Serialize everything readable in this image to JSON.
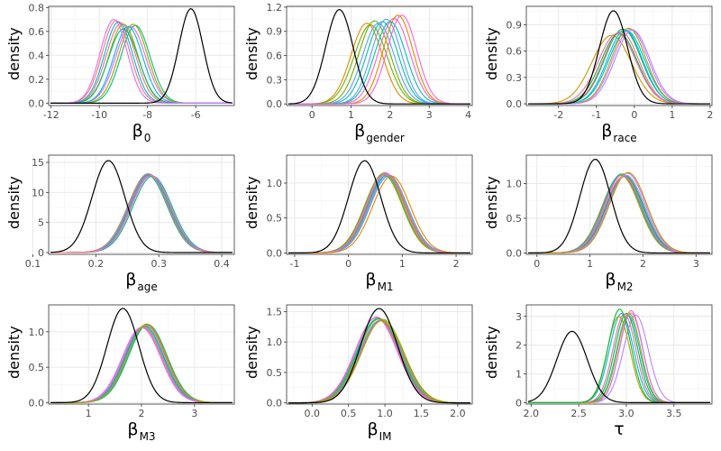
{
  "series_colors": [
    "#F8766D",
    "#E58700",
    "#C99800",
    "#A3A500",
    "#6BB100",
    "#00BA38",
    "#00BF7D",
    "#00C0AF",
    "#00BCD8",
    "#00B0F6",
    "#619CFF",
    "#B983FF",
    "#E76BF3",
    "#FD61D1",
    "#FF67A4"
  ],
  "reference_color": "#000000",
  "chart_data": [
    {
      "type": "line",
      "ylabel": "density",
      "xlabel": {
        "main": "β",
        "sub": "0"
      },
      "xlim": [
        -12.1,
        -4.4
      ],
      "ylim": [
        -0.02,
        0.81
      ],
      "xticks": [
        -12,
        -10,
        -8,
        -6
      ],
      "xtick_labels": [
        "-12",
        "-10",
        "-8",
        "-6"
      ],
      "yticks": [
        0.0,
        0.2,
        0.4,
        0.6,
        0.8
      ],
      "ytick_labels": [
        "0.0",
        "0.2",
        "0.4",
        "0.6",
        "0.8"
      ],
      "grid": true,
      "reference": {
        "mean": -6.2,
        "sd": 0.5,
        "peak": 0.79
      },
      "series": [
        {
          "mean": -9.3,
          "sd": 0.58,
          "peak": 0.69
        },
        {
          "mean": -9.0,
          "sd": 0.6,
          "peak": 0.66
        },
        {
          "mean": -8.5,
          "sd": 0.6,
          "peak": 0.65
        },
        {
          "mean": -9.2,
          "sd": 0.58,
          "peak": 0.68
        },
        {
          "mean": -8.7,
          "sd": 0.62,
          "peak": 0.64
        },
        {
          "mean": -9.1,
          "sd": 0.6,
          "peak": 0.67
        },
        {
          "mean": -8.6,
          "sd": 0.6,
          "peak": 0.66
        },
        {
          "mean": -9.0,
          "sd": 0.62,
          "peak": 0.62
        },
        {
          "mean": -8.8,
          "sd": 0.6,
          "peak": 0.64
        },
        {
          "mean": -9.4,
          "sd": 0.56,
          "peak": 0.7
        }
      ]
    },
    {
      "type": "line",
      "ylabel": "density",
      "xlabel": {
        "main": "β",
        "sub": "gender"
      },
      "xlim": [
        -0.65,
        4.1
      ],
      "ylim": [
        -0.02,
        1.21
      ],
      "xticks": [
        0,
        1,
        2,
        3,
        4
      ],
      "xtick_labels": [
        "0",
        "1",
        "2",
        "3",
        "4"
      ],
      "yticks": [
        0.0,
        0.3,
        0.6,
        0.9,
        1.2
      ],
      "ytick_labels": [
        "0.0",
        "0.3",
        "0.6",
        "0.9",
        "1.2"
      ],
      "grid": true,
      "reference": {
        "mean": 0.7,
        "sd": 0.35,
        "peak": 1.17
      },
      "series": [
        {
          "mean": 1.4,
          "sd": 0.4,
          "peak": 1.0
        },
        {
          "mean": 1.6,
          "sd": 0.4,
          "peak": 1.03
        },
        {
          "mean": 1.8,
          "sd": 0.4,
          "peak": 1.02
        },
        {
          "mean": 1.9,
          "sd": 0.38,
          "peak": 1.05
        },
        {
          "mean": 2.1,
          "sd": 0.4,
          "peak": 1.06
        },
        {
          "mean": 2.2,
          "sd": 0.38,
          "peak": 1.1
        },
        {
          "mean": 1.5,
          "sd": 0.42,
          "peak": 0.98
        },
        {
          "mean": 2.0,
          "sd": 0.4,
          "peak": 1.02
        },
        {
          "mean": 1.7,
          "sd": 0.4,
          "peak": 1.0
        },
        {
          "mean": 2.3,
          "sd": 0.38,
          "peak": 1.1
        }
      ]
    },
    {
      "type": "line",
      "ylabel": "density",
      "xlabel": {
        "main": "β",
        "sub": "race"
      },
      "xlim": [
        -2.85,
        2.05
      ],
      "ylim": [
        -0.02,
        1.11
      ],
      "xticks": [
        -2,
        -1,
        0,
        1,
        2
      ],
      "xtick_labels": [
        "-2",
        "-1",
        "0",
        "1",
        "2"
      ],
      "yticks": [
        0.0,
        0.3,
        0.6,
        0.9
      ],
      "ytick_labels": [
        "0.0",
        "0.3",
        "0.6",
        "0.9"
      ],
      "grid": true,
      "reference": {
        "mean": -0.55,
        "sd": 0.37,
        "peak": 1.06
      },
      "series": [
        {
          "mean": -0.6,
          "sd": 0.52,
          "peak": 0.78
        },
        {
          "mean": -0.3,
          "sd": 0.48,
          "peak": 0.85
        },
        {
          "mean": -0.2,
          "sd": 0.47,
          "peak": 0.83
        },
        {
          "mean": -0.1,
          "sd": 0.46,
          "peak": 0.85
        },
        {
          "mean": -0.35,
          "sd": 0.47,
          "peak": 0.82
        },
        {
          "mean": -0.15,
          "sd": 0.45,
          "peak": 0.86
        },
        {
          "mean": -0.4,
          "sd": 0.48,
          "peak": 0.8
        },
        {
          "mean": -0.25,
          "sd": 0.46,
          "peak": 0.84
        },
        {
          "mean": -0.05,
          "sd": 0.46,
          "peak": 0.84
        },
        {
          "mean": -0.45,
          "sd": 0.5,
          "peak": 0.8
        }
      ]
    },
    {
      "type": "line",
      "ylabel": "density",
      "xlabel": {
        "main": "β",
        "sub": "age"
      },
      "xlim": [
        0.125,
        0.42
      ],
      "ylim": [
        -0.3,
        16.2
      ],
      "xticks": [
        0.1,
        0.2,
        0.3,
        0.4
      ],
      "xtick_labels": [
        "0.1",
        "0.2",
        "0.3",
        "0.4"
      ],
      "yticks": [
        0,
        5,
        10,
        15
      ],
      "ytick_labels": [
        "0",
        "5",
        "10",
        "15"
      ],
      "grid": true,
      "reference": {
        "mean": 0.22,
        "sd": 0.026,
        "peak": 15.3
      },
      "series": [
        {
          "mean": 0.285,
          "sd": 0.031,
          "peak": 12.9
        },
        {
          "mean": 0.29,
          "sd": 0.031,
          "peak": 12.7
        },
        {
          "mean": 0.283,
          "sd": 0.031,
          "peak": 13.1
        },
        {
          "mean": 0.286,
          "sd": 0.031,
          "peak": 12.9
        },
        {
          "mean": 0.284,
          "sd": 0.031,
          "peak": 13.0
        },
        {
          "mean": 0.287,
          "sd": 0.031,
          "peak": 12.8
        },
        {
          "mean": 0.282,
          "sd": 0.031,
          "peak": 12.9
        },
        {
          "mean": 0.285,
          "sd": 0.031,
          "peak": 13.0
        },
        {
          "mean": 0.288,
          "sd": 0.031,
          "peak": 12.8
        },
        {
          "mean": 0.283,
          "sd": 0.031,
          "peak": 13.1
        }
      ]
    },
    {
      "type": "line",
      "ylabel": "density",
      "xlabel": {
        "main": "β",
        "sub": "M1"
      },
      "xlim": [
        -1.15,
        2.3
      ],
      "ylim": [
        -0.02,
        1.4
      ],
      "xticks": [
        -1,
        0,
        1,
        2
      ],
      "xtick_labels": [
        "-1",
        "0",
        "1",
        "2"
      ],
      "yticks": [
        0.0,
        0.5,
        1.0
      ],
      "ytick_labels": [
        "0.0",
        "0.5",
        "1.0"
      ],
      "grid": true,
      "reference": {
        "mean": 0.3,
        "sd": 0.3,
        "peak": 1.32
      },
      "series": [
        {
          "mean": 0.65,
          "sd": 0.35,
          "peak": 1.12
        },
        {
          "mean": 0.7,
          "sd": 0.35,
          "peak": 1.13
        },
        {
          "mean": 0.75,
          "sd": 0.35,
          "peak": 1.1
        },
        {
          "mean": 0.68,
          "sd": 0.35,
          "peak": 1.15
        },
        {
          "mean": 0.72,
          "sd": 0.35,
          "peak": 1.12
        },
        {
          "mean": 0.66,
          "sd": 0.35,
          "peak": 1.14
        },
        {
          "mean": 0.7,
          "sd": 0.35,
          "peak": 1.1
        },
        {
          "mean": 0.74,
          "sd": 0.35,
          "peak": 1.12
        },
        {
          "mean": 0.69,
          "sd": 0.35,
          "peak": 1.13
        },
        {
          "mean": 0.8,
          "sd": 0.35,
          "peak": 1.1
        }
      ]
    },
    {
      "type": "line",
      "ylabel": "density",
      "xlabel": {
        "main": "β",
        "sub": "M2"
      },
      "xlim": [
        -0.2,
        3.3
      ],
      "ylim": [
        -0.02,
        1.41
      ],
      "xticks": [
        0,
        1,
        2,
        3
      ],
      "xtick_labels": [
        "0",
        "1",
        "2",
        "3"
      ],
      "yticks": [
        0.0,
        0.5,
        1.0
      ],
      "ytick_labels": [
        "0.0",
        "0.5",
        "1.0"
      ],
      "grid": true,
      "reference": {
        "mean": 1.1,
        "sd": 0.29,
        "peak": 1.35
      },
      "series": [
        {
          "mean": 1.6,
          "sd": 0.35,
          "peak": 1.12
        },
        {
          "mean": 1.65,
          "sd": 0.35,
          "peak": 1.1
        },
        {
          "mean": 1.7,
          "sd": 0.35,
          "peak": 1.15
        },
        {
          "mean": 1.62,
          "sd": 0.35,
          "peak": 1.13
        },
        {
          "mean": 1.58,
          "sd": 0.35,
          "peak": 1.12
        },
        {
          "mean": 1.66,
          "sd": 0.35,
          "peak": 1.11
        },
        {
          "mean": 1.6,
          "sd": 0.35,
          "peak": 1.14
        },
        {
          "mean": 1.68,
          "sd": 0.35,
          "peak": 1.12
        },
        {
          "mean": 1.63,
          "sd": 0.35,
          "peak": 1.1
        },
        {
          "mean": 1.72,
          "sd": 0.35,
          "peak": 1.16
        }
      ]
    },
    {
      "type": "line",
      "ylabel": "density",
      "xlabel": {
        "main": "β",
        "sub": "M3"
      },
      "xlim": [
        0.25,
        3.75
      ],
      "ylim": [
        -0.02,
        1.38
      ],
      "xticks": [
        1,
        2,
        3
      ],
      "xtick_labels": [
        "1",
        "2",
        "3"
      ],
      "yticks": [
        0.0,
        0.5,
        1.0
      ],
      "ytick_labels": [
        "0.0",
        "0.5",
        "1.0"
      ],
      "grid": true,
      "reference": {
        "mean": 1.65,
        "sd": 0.3,
        "peak": 1.33
      },
      "series": [
        {
          "mean": 2.05,
          "sd": 0.36,
          "peak": 1.08
        },
        {
          "mean": 2.1,
          "sd": 0.36,
          "peak": 1.1
        },
        {
          "mean": 2.0,
          "sd": 0.36,
          "peak": 1.06
        },
        {
          "mean": 2.08,
          "sd": 0.36,
          "peak": 1.09
        },
        {
          "mean": 2.03,
          "sd": 0.36,
          "peak": 1.07
        },
        {
          "mean": 2.12,
          "sd": 0.36,
          "peak": 1.1
        },
        {
          "mean": 2.06,
          "sd": 0.36,
          "peak": 1.08
        },
        {
          "mean": 2.02,
          "sd": 0.36,
          "peak": 1.06
        },
        {
          "mean": 2.09,
          "sd": 0.36,
          "peak": 1.09
        },
        {
          "mean": 2.1,
          "sd": 0.36,
          "peak": 1.11
        }
      ]
    },
    {
      "type": "line",
      "ylabel": "density",
      "xlabel": {
        "main": "β",
        "sub": "IM"
      },
      "xlim": [
        -0.35,
        2.2
      ],
      "ylim": [
        -0.02,
        1.61
      ],
      "xticks": [
        0.0,
        0.5,
        1.0,
        1.5,
        2.0
      ],
      "xtick_labels": [
        "0.0",
        "0.5",
        "1.0",
        "1.5",
        "2.0"
      ],
      "yticks": [
        0.0,
        0.5,
        1.0,
        1.5
      ],
      "ytick_labels": [
        "0.0",
        "0.5",
        "1.0",
        "1.5"
      ],
      "grid": true,
      "reference": {
        "mean": 0.92,
        "sd": 0.255,
        "peak": 1.55
      },
      "series": [
        {
          "mean": 0.9,
          "sd": 0.29,
          "peak": 1.38
        },
        {
          "mean": 0.95,
          "sd": 0.29,
          "peak": 1.36
        },
        {
          "mean": 0.88,
          "sd": 0.29,
          "peak": 1.4
        },
        {
          "mean": 0.93,
          "sd": 0.29,
          "peak": 1.35
        },
        {
          "mean": 0.97,
          "sd": 0.29,
          "peak": 1.37
        },
        {
          "mean": 0.91,
          "sd": 0.29,
          "peak": 1.39
        },
        {
          "mean": 0.94,
          "sd": 0.29,
          "peak": 1.36
        },
        {
          "mean": 0.89,
          "sd": 0.29,
          "peak": 1.41
        },
        {
          "mean": 0.96,
          "sd": 0.29,
          "peak": 1.35
        },
        {
          "mean": 0.92,
          "sd": 0.29,
          "peak": 1.38
        }
      ]
    },
    {
      "type": "line",
      "ylabel": "density",
      "xlabel": {
        "main": "τ",
        "sub": ""
      },
      "xlim": [
        1.95,
        3.9
      ],
      "ylim": [
        -0.05,
        3.4
      ],
      "xticks": [
        2.0,
        2.5,
        3.0,
        3.5
      ],
      "xtick_labels": [
        "2.0",
        "2.5",
        "3.0",
        "3.5"
      ],
      "yticks": [
        0,
        1,
        2,
        3
      ],
      "ytick_labels": [
        "0",
        "1",
        "2",
        "3"
      ],
      "grid": true,
      "reference": {
        "mean": 2.43,
        "sd": 0.16,
        "peak": 2.48
      },
      "series": [
        {
          "mean": 2.95,
          "sd": 0.125,
          "peak": 3.1
        },
        {
          "mean": 3.1,
          "sd": 0.13,
          "peak": 3.05
        },
        {
          "mean": 3.05,
          "sd": 0.12,
          "peak": 3.2
        },
        {
          "mean": 2.92,
          "sd": 0.12,
          "peak": 3.0
        },
        {
          "mean": 3.0,
          "sd": 0.12,
          "peak": 3.1
        },
        {
          "mean": 3.02,
          "sd": 0.12,
          "peak": 3.05
        },
        {
          "mean": 3.05,
          "sd": 0.12,
          "peak": 3.12
        },
        {
          "mean": 2.98,
          "sd": 0.12,
          "peak": 3.08
        },
        {
          "mean": 3.03,
          "sd": 0.12,
          "peak": 3.1
        },
        {
          "mean": 2.93,
          "sd": 0.12,
          "peak": 3.25
        }
      ]
    }
  ]
}
